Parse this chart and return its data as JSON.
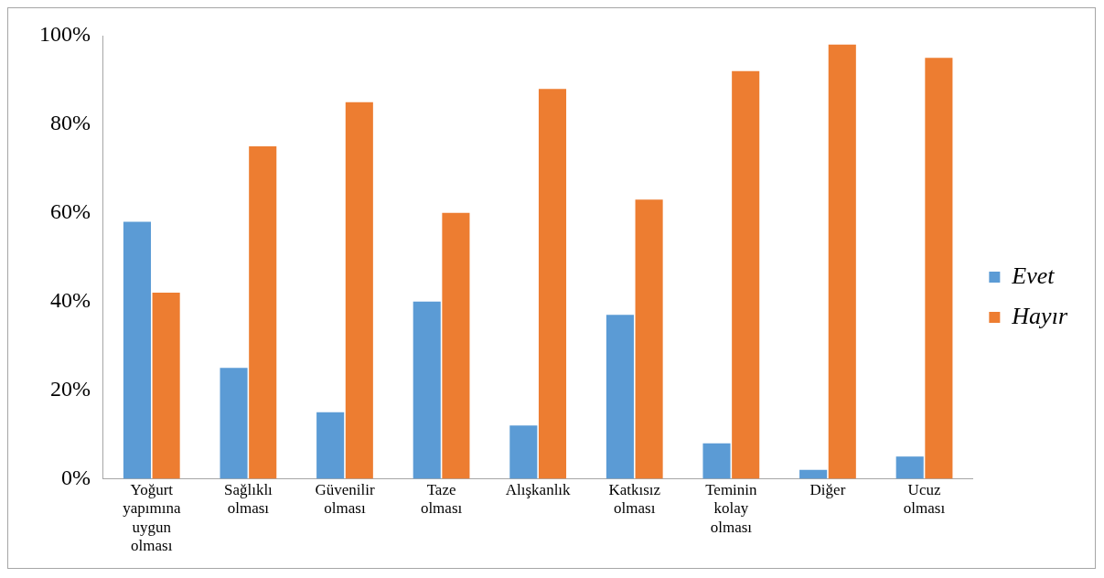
{
  "chart_data": {
    "type": "bar",
    "categories": [
      "Yoğurt yapımına uygun olması",
      "Sağlıklı olması",
      "Güvenilir olması",
      "Taze olması",
      "Alışkanlık",
      "Katkısız olması",
      "Teminin kolay olması",
      "Diğer",
      "Ucuz olması"
    ],
    "series": [
      {
        "name": "Evet",
        "color": "#5b9bd5",
        "values": [
          58,
          25,
          15,
          40,
          12,
          37,
          8,
          2,
          5
        ]
      },
      {
        "name": "Hayır",
        "color": "#ed7d31",
        "values": [
          42,
          75,
          85,
          60,
          88,
          63,
          92,
          98,
          95
        ]
      }
    ],
    "ylim": [
      0,
      100
    ],
    "yticks": [
      {
        "value": 0,
        "label": "0%"
      },
      {
        "value": 20,
        "label": "20%"
      },
      {
        "value": 40,
        "label": "40%"
      },
      {
        "value": 60,
        "label": "60%"
      },
      {
        "value": 80,
        "label": "80%"
      },
      {
        "value": 100,
        "label": "100%"
      }
    ],
    "grid": false,
    "legend": "right"
  }
}
